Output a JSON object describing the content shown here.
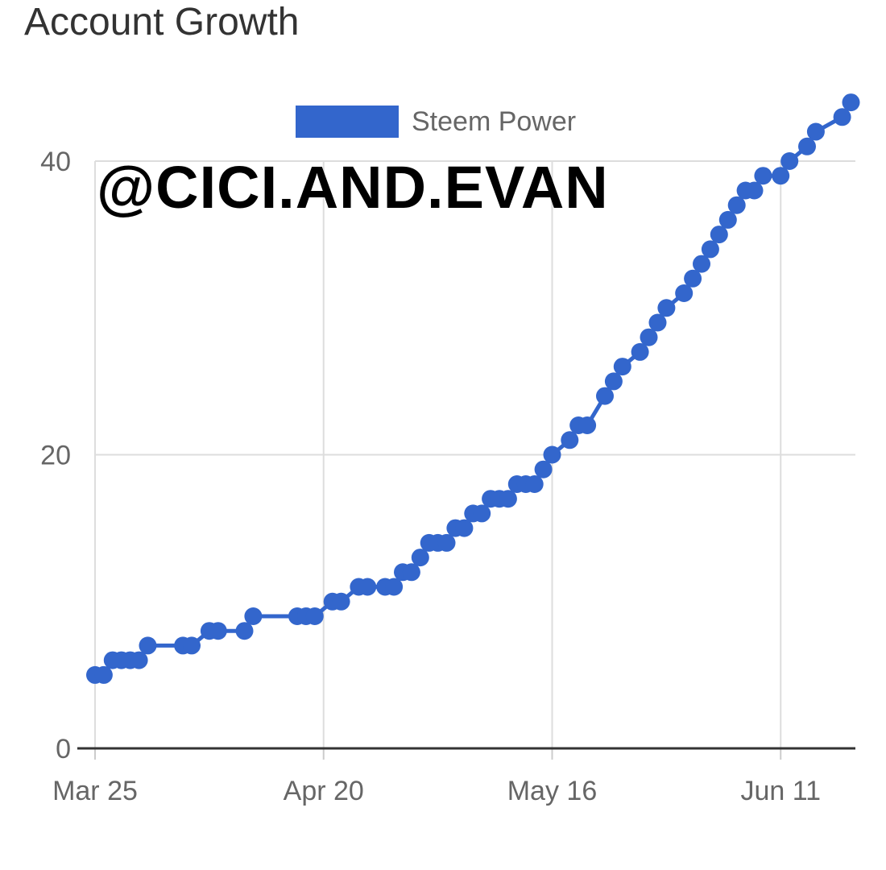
{
  "chart_data": {
    "type": "line",
    "title": "Account Growth",
    "annotation": "@CICI.AND.EVAN",
    "legend": {
      "position": "top",
      "entries": [
        "Steem Power"
      ]
    },
    "xlabel": "",
    "ylabel": "",
    "x_ticks": [
      "Mar 25",
      "Apr 20",
      "May 16",
      "Jun 11"
    ],
    "x_tick_days": [
      0,
      26,
      52,
      78
    ],
    "x_range_days": [
      0,
      86.5
    ],
    "y_ticks": [
      0,
      20,
      40
    ],
    "ylim": [
      0,
      40
    ],
    "grid": true,
    "colors": {
      "series": "#3366cc",
      "grid": "#dddddd",
      "axis": "#333333"
    },
    "series": [
      {
        "name": "Steem Power",
        "x": [
          0,
          1,
          2,
          3,
          4,
          5,
          6,
          10,
          11,
          13,
          14,
          17,
          18,
          23,
          24,
          25,
          27,
          28,
          30,
          31,
          33,
          34,
          35,
          36,
          37,
          38,
          39,
          40,
          41,
          42,
          43,
          44,
          45,
          46,
          47,
          48,
          49,
          50,
          51,
          52,
          54,
          55,
          56,
          58,
          59,
          60,
          62,
          63,
          64,
          65,
          67,
          68,
          69,
          70,
          71,
          72,
          73,
          74,
          75,
          76,
          78,
          79,
          81,
          82,
          85,
          86
        ],
        "y": [
          5,
          5,
          6,
          6,
          6,
          6,
          7,
          7,
          7,
          8,
          8,
          8,
          9,
          9,
          9,
          9,
          10,
          10,
          11,
          11,
          11,
          11,
          12,
          12,
          13,
          14,
          14,
          14,
          15,
          15,
          16,
          16,
          17,
          17,
          17,
          18,
          18,
          18,
          19,
          20,
          21,
          22,
          22,
          24,
          25,
          26,
          27,
          28,
          29,
          30,
          31,
          32,
          33,
          34,
          35,
          36,
          37,
          38,
          38,
          39,
          39,
          40,
          41,
          42,
          43,
          44
        ]
      }
    ]
  }
}
